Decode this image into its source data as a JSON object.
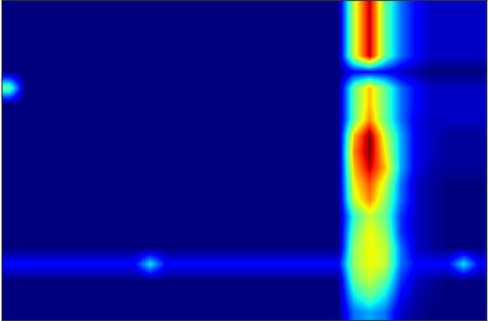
{
  "chart_data": {
    "type": "heatmap",
    "tick_labels": false,
    "cells": [
      [
        1,
        1,
        1,
        1,
        1,
        1,
        1,
        1,
        1,
        1,
        1,
        1,
        1,
        1,
        1,
        1,
        1,
        1,
        1,
        1,
        1,
        1,
        6,
        9,
        5,
        3,
        2,
        1.5,
        1.5,
        1.5,
        1.5
      ],
      [
        1,
        1,
        1,
        1,
        1,
        1,
        1,
        1,
        1,
        1,
        1,
        1,
        1,
        1,
        1,
        1,
        1,
        1,
        1,
        1,
        1,
        1,
        6,
        9,
        5,
        3,
        2,
        1.5,
        1.5,
        1.5,
        1.5
      ],
      [
        1,
        1,
        1,
        1,
        1,
        1,
        1,
        1,
        1,
        1,
        1,
        1,
        1,
        1,
        1,
        1,
        1,
        1,
        1,
        1,
        1,
        1,
        6,
        9,
        5,
        3,
        2,
        1.5,
        1.5,
        1.5,
        1.5
      ],
      [
        1,
        1,
        1,
        1,
        1,
        1,
        1,
        1,
        1,
        1,
        1,
        1,
        1,
        1,
        1,
        1,
        1,
        1,
        1,
        1,
        1,
        1,
        6,
        9,
        5,
        3,
        2,
        1.5,
        1.5,
        1.5,
        1.5
      ],
      [
        1,
        1,
        1,
        1,
        1,
        1,
        1,
        1,
        1,
        1,
        1,
        1,
        1,
        1,
        1,
        1,
        1,
        1,
        1,
        1,
        1,
        1,
        2,
        2,
        2,
        1.5,
        1.2,
        1,
        1,
        1,
        1
      ],
      [
        5,
        1,
        1,
        1,
        1,
        1,
        1,
        1,
        1,
        1,
        1,
        1,
        1,
        1,
        1,
        1,
        1,
        1,
        1,
        1,
        1,
        1,
        5,
        7,
        5,
        3,
        2,
        1.5,
        1.5,
        1.5,
        1.5
      ],
      [
        1,
        1,
        1,
        1,
        1,
        1,
        1,
        1,
        1,
        1,
        1,
        1,
        1,
        1,
        1,
        1,
        1,
        1,
        1,
        1,
        1,
        1,
        5,
        7,
        5,
        3,
        2,
        1.5,
        1.5,
        1.5,
        1.5
      ],
      [
        1,
        1,
        1,
        1,
        1,
        1,
        1,
        1,
        1,
        1,
        1,
        1,
        1,
        1,
        1,
        1,
        1,
        1,
        1,
        1,
        1,
        1,
        5,
        7.5,
        5,
        3,
        1.8,
        1.5,
        1.5,
        1.5,
        1.5
      ],
      [
        1,
        1,
        1,
        1,
        1,
        1,
        1,
        1,
        1,
        1,
        1,
        1,
        1,
        1,
        1,
        1,
        1,
        1,
        1,
        1,
        1,
        1,
        7,
        9.5,
        6,
        3.5,
        1.8,
        1.5,
        1.2,
        1.2,
        1.2
      ],
      [
        1,
        1,
        1,
        1,
        1,
        1,
        1,
        1,
        1,
        1,
        1,
        1,
        1,
        1,
        1,
        1,
        1,
        1,
        1,
        1,
        1,
        1,
        7.5,
        9.5,
        6.5,
        3.5,
        1.8,
        1.5,
        1.2,
        1.2,
        1.2
      ],
      [
        1,
        1,
        1,
        1,
        1,
        1,
        1,
        1,
        1,
        1,
        1,
        1,
        1,
        1,
        1,
        1,
        1,
        1,
        1,
        1,
        1,
        1,
        7,
        9,
        7,
        3.5,
        1.8,
        1.3,
        1.2,
        1.2,
        1.2
      ],
      [
        1,
        1,
        1,
        1,
        1,
        1,
        1,
        1,
        1,
        1,
        1,
        1,
        1,
        1,
        1,
        1,
        1,
        1,
        1,
        1,
        1,
        1,
        6.5,
        8,
        6,
        3,
        1.5,
        1.2,
        1,
        1,
        1
      ],
      [
        1,
        1,
        1,
        1,
        1,
        1,
        1,
        1,
        1,
        1,
        1,
        1,
        1,
        1,
        1,
        1,
        1,
        1,
        1,
        1,
        1,
        1,
        6,
        7.5,
        5.5,
        3,
        1.5,
        1.2,
        1,
        1,
        1
      ],
      [
        1,
        1,
        1,
        1,
        1,
        1,
        1,
        1,
        1,
        1,
        1,
        1,
        1,
        1,
        1,
        1,
        1,
        1,
        1,
        1,
        1,
        1,
        4.5,
        6,
        5,
        2.5,
        1.5,
        1.2,
        1,
        1,
        1
      ],
      [
        1,
        1,
        1,
        1,
        1,
        1,
        1,
        1,
        1,
        1,
        1,
        1,
        1,
        1,
        1,
        1,
        1,
        1,
        1,
        1,
        1,
        1,
        5,
        6.5,
        5.5,
        2.5,
        1.5,
        1.2,
        1,
        1,
        1
      ],
      [
        1,
        1,
        1,
        1,
        1,
        1,
        1,
        1,
        1,
        1,
        1,
        1,
        1,
        1,
        1,
        1,
        1,
        1,
        1,
        1,
        1,
        1,
        5.5,
        6.5,
        6,
        3,
        1.5,
        1.2,
        1,
        1,
        1
      ],
      [
        2,
        2,
        2,
        2,
        2,
        2,
        2,
        2,
        2,
        4,
        2,
        2,
        2,
        2,
        2,
        2,
        2,
        2,
        2,
        2,
        2,
        2,
        5.5,
        6.5,
        6,
        3,
        2,
        2,
        2,
        4,
        2
      ],
      [
        1,
        1,
        1,
        1,
        1,
        1,
        1,
        1,
        1,
        1,
        1,
        1,
        1,
        1,
        1,
        1,
        1,
        1,
        1,
        1,
        1,
        1,
        5,
        6,
        5,
        2.5,
        1.5,
        1.2,
        1,
        1,
        1
      ],
      [
        1,
        1,
        1,
        1,
        1,
        1,
        1,
        1,
        1,
        1,
        1,
        1,
        1,
        1,
        1,
        1,
        1,
        1,
        1,
        1,
        1,
        1,
        4,
        5,
        4,
        2,
        1.3,
        1.1,
        1,
        1,
        1
      ],
      [
        1,
        1,
        1,
        1,
        1,
        1,
        1,
        1,
        1,
        1,
        1,
        1,
        1,
        1,
        1,
        1,
        1,
        1,
        1,
        1,
        1,
        1,
        3,
        3.5,
        3,
        1.5,
        1.2,
        1,
        1,
        1,
        1
      ]
    ]
  }
}
